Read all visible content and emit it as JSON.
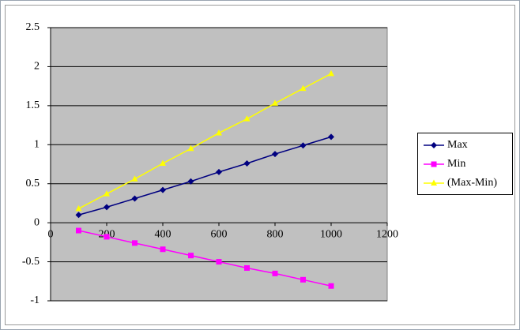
{
  "chart_data": {
    "type": "line",
    "x": [
      100,
      200,
      300,
      400,
      500,
      600,
      700,
      800,
      900,
      1000
    ],
    "series": [
      {
        "name": "Max",
        "color": "#000080",
        "marker": "diamond",
        "values": [
          0.1,
          0.2,
          0.31,
          0.42,
          0.53,
          0.65,
          0.76,
          0.88,
          0.99,
          1.1
        ]
      },
      {
        "name": "Min",
        "color": "#ff00ff",
        "marker": "square",
        "values": [
          -0.1,
          -0.18,
          -0.26,
          -0.34,
          -0.42,
          -0.5,
          -0.58,
          -0.65,
          -0.73,
          -0.81
        ]
      },
      {
        "name": "(Max-Min)",
        "color": "#ffff00",
        "marker": "triangle",
        "values": [
          0.18,
          0.37,
          0.56,
          0.76,
          0.95,
          1.15,
          1.33,
          1.53,
          1.72,
          1.91
        ]
      }
    ],
    "xlim": [
      0,
      1200
    ],
    "xticks": [
      0,
      200,
      400,
      600,
      800,
      1000,
      1200
    ],
    "ylim": [
      -1,
      2.5
    ],
    "yticks": [
      2.5,
      2,
      1.5,
      1,
      0.5,
      0,
      -0.5,
      -1
    ],
    "grid": true,
    "legend": "right"
  }
}
